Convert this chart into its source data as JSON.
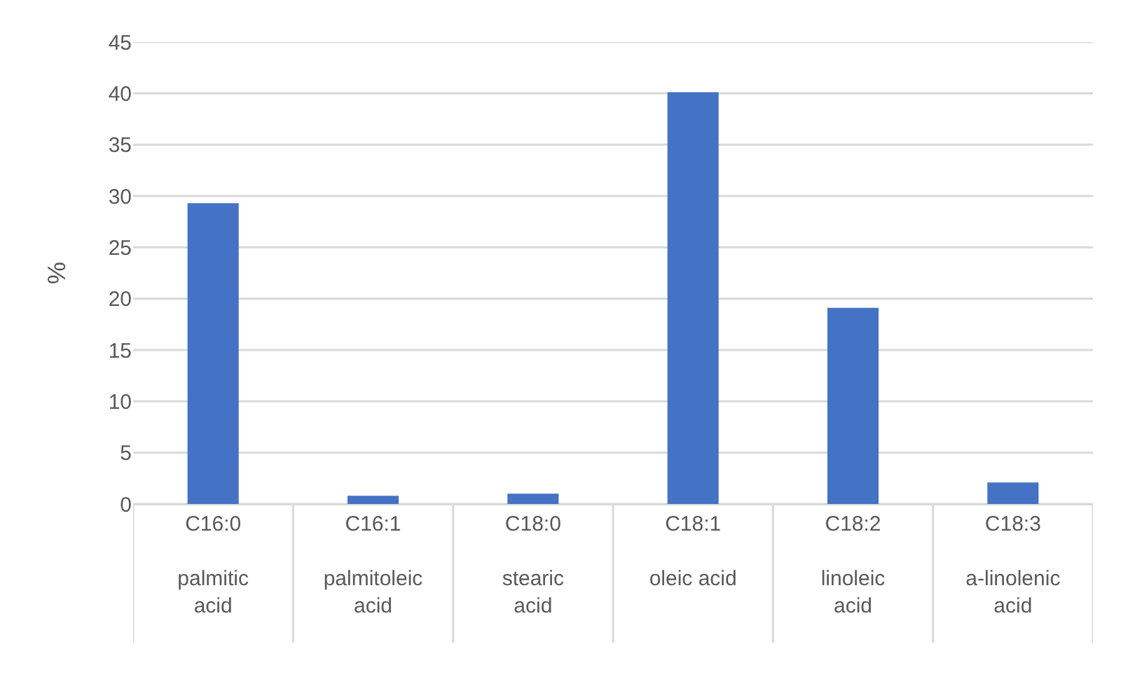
{
  "chart_data": {
    "type": "bar",
    "ylabel": "%",
    "categories": [
      "C16:0\npalmitic acid",
      "C16:1\npalmitoleic acid",
      "C18:0\nstearic acid",
      "C18:1\noleic acid",
      "C18:2\nlinoleic acid",
      "C18:3\na-linolenic acid"
    ],
    "values": [
      29.3,
      0.8,
      1.0,
      40.1,
      19.1,
      2.1
    ],
    "color": "#4472c4",
    "ylim": [
      0,
      45
    ],
    "yticks": [
      0,
      5,
      10,
      15,
      20,
      25,
      30,
      35,
      40,
      45
    ],
    "grid": "y"
  }
}
